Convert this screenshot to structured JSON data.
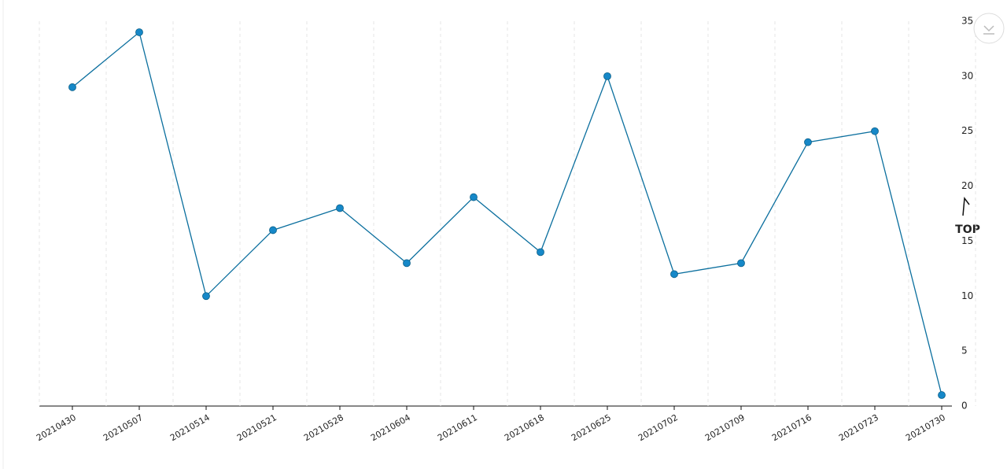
{
  "chart_data": {
    "type": "line",
    "categories": [
      "20210430",
      "20210507",
      "20210514",
      "20210521",
      "20210528",
      "20210604",
      "20210611",
      "20210618",
      "20210625",
      "20210702",
      "20210709",
      "20210716",
      "20210723",
      "20210730"
    ],
    "values": [
      29,
      34,
      10,
      16,
      18,
      13,
      19,
      14,
      30,
      12,
      13,
      24,
      25,
      1
    ],
    "line_color": "#0b6f9e",
    "marker_color": "#1688c8",
    "ylim": [
      0,
      35
    ],
    "yticks": [
      0,
      5,
      10,
      15,
      20,
      25,
      30,
      35
    ],
    "y_axis_side": "right",
    "grid": true
  },
  "ui": {
    "top_button": "TOP"
  }
}
